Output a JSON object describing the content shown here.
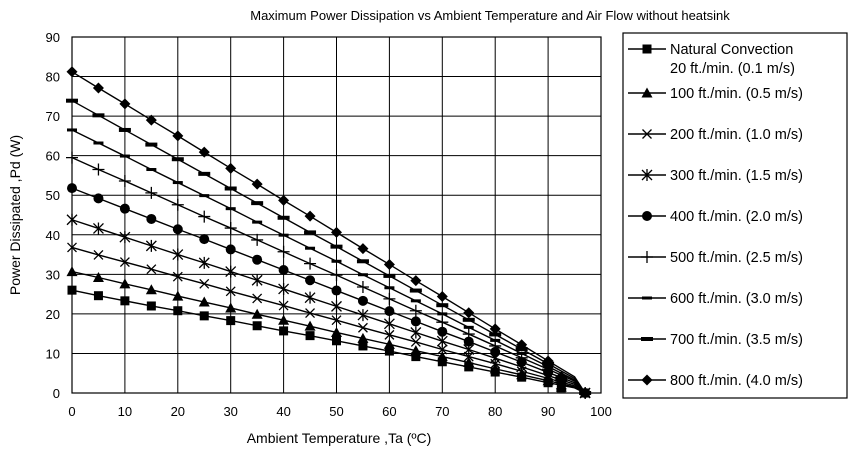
{
  "chart_data": {
    "type": "line",
    "title": "Maximum Power Dissipation vs Ambient Temperature and Air Flow without heatsink",
    "xlabel": "Ambient Temperature ,Ta (ºC)",
    "ylabel": "Power Dissipated ,Pd (W)",
    "xlim": [
      0,
      100
    ],
    "ylim": [
      0,
      90
    ],
    "xticks": [
      0,
      10,
      20,
      30,
      40,
      50,
      60,
      70,
      80,
      90,
      100
    ],
    "yticks": [
      0,
      10,
      20,
      30,
      40,
      50,
      60,
      70,
      80,
      90
    ],
    "grid": true,
    "legend_position": "right",
    "colors": {
      "line": "#000000",
      "grid": "#000000",
      "background": "#ffffff"
    },
    "x": [
      0,
      5,
      10,
      15,
      20,
      25,
      30,
      35,
      40,
      45,
      50,
      55,
      60,
      65,
      70,
      75,
      80,
      85,
      90,
      95,
      100
    ],
    "series": [
      {
        "name": "Natural Convection",
        "name_line2": "20 ft./min. (0.1 m/s)",
        "marker": "square",
        "values": [
          26,
          24.6,
          23.3,
          22,
          20.8,
          19.5,
          18.3,
          17,
          15.7,
          14.5,
          13.2,
          11.9,
          10.6,
          9.2,
          7.9,
          6.6,
          5.3,
          4,
          2.6,
          1.3,
          0
        ]
      },
      {
        "name": "100 ft./min. (0.5 m/s)",
        "marker": "triangle",
        "values": [
          30.7,
          29.2,
          27.6,
          26.1,
          24.5,
          23,
          21.5,
          19.9,
          18.4,
          16.9,
          15.3,
          13.8,
          12.3,
          10.7,
          9.2,
          7.7,
          6.1,
          4.6,
          3.1,
          1.5,
          0
        ]
      },
      {
        "name": "200 ft./min. (1.0 m/s)",
        "marker": "x",
        "values": [
          36.8,
          34.9,
          33.1,
          31.3,
          29.4,
          27.6,
          25.7,
          23.9,
          22.1,
          20.2,
          18.4,
          16.5,
          14.7,
          12.9,
          11,
          9.2,
          7.4,
          5.5,
          3.7,
          1.8,
          0
        ]
      },
      {
        "name": "300 ft./min. (1.5 m/s)",
        "marker": "star",
        "values": [
          43.8,
          41.6,
          39.4,
          37.2,
          35,
          32.9,
          30.7,
          28.5,
          26.3,
          24.1,
          21.9,
          19.7,
          17.5,
          15.3,
          13.1,
          11,
          8.8,
          6.6,
          4.4,
          2.2,
          0
        ]
      },
      {
        "name": "400 ft./min. (2.0 m/s)",
        "marker": "circle",
        "values": [
          51.8,
          49.2,
          46.6,
          44,
          41.4,
          38.9,
          36.3,
          33.7,
          31.1,
          28.5,
          25.9,
          23.3,
          20.7,
          18.1,
          15.5,
          13,
          10.4,
          7.8,
          5.2,
          2.6,
          0
        ]
      },
      {
        "name": "500 ft./min. (2.5 m/s)",
        "marker": "plus",
        "values": [
          59.5,
          56.5,
          53.6,
          50.6,
          47.6,
          44.6,
          41.7,
          38.7,
          35.7,
          32.7,
          29.8,
          26.8,
          23.8,
          20.8,
          17.9,
          14.9,
          11.9,
          8.9,
          6,
          3,
          0
        ]
      },
      {
        "name": "600 ft./min. (3.0 m/s)",
        "marker": "dash",
        "values": [
          66.5,
          63.2,
          59.9,
          56.5,
          53.2,
          49.9,
          46.6,
          43.2,
          39.9,
          36.6,
          33.3,
          29.9,
          26.6,
          23.3,
          20,
          16.6,
          13.3,
          10,
          6.7,
          3.3,
          0
        ]
      },
      {
        "name": "700 ft./min. (3.5 m/s)",
        "marker": "bar",
        "values": [
          73.9,
          70.2,
          66.5,
          62.8,
          59.1,
          55.4,
          51.7,
          48,
          44.3,
          40.6,
          37,
          33.3,
          29.6,
          25.9,
          22.2,
          18.5,
          14.8,
          11.1,
          7.4,
          3.7,
          0
        ]
      },
      {
        "name": "800 ft./min. (4.0 m/s)",
        "marker": "diamond",
        "values": [
          81.2,
          77.1,
          73.1,
          69,
          65,
          60.9,
          56.8,
          52.8,
          48.7,
          44.7,
          40.6,
          36.5,
          32.5,
          28.4,
          24.4,
          20.3,
          16.2,
          12.2,
          8.1,
          4.1,
          0
        ]
      }
    ]
  }
}
